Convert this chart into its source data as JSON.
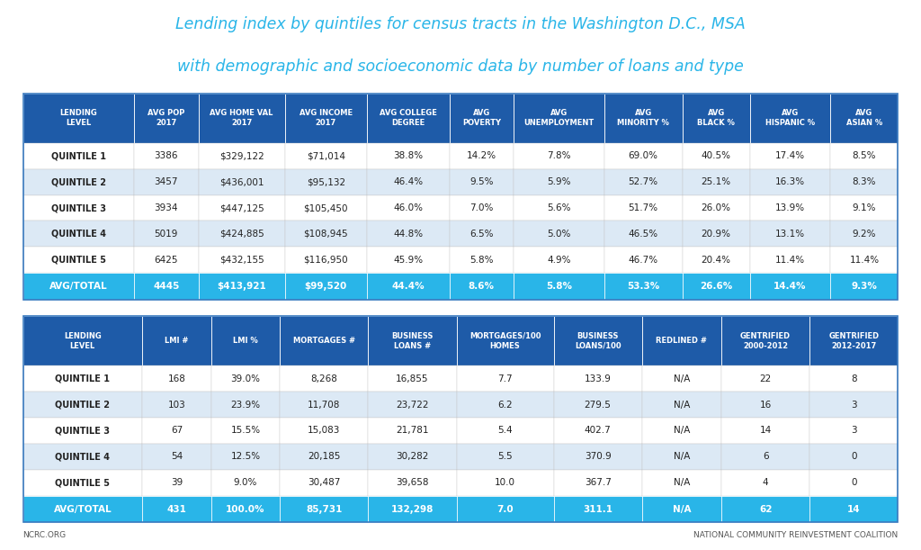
{
  "title_line1": "Lending index by quintiles for census tracts in the Washington D.C., MSA",
  "title_line2": "with demographic and socioeconomic data by number of loans and type",
  "title_color": "#29b5e8",
  "footer_left": "NCRC.ORG",
  "footer_right": "NATIONAL COMMUNITY REINVESTMENT COALITION",
  "header_bg": "#1e5ba8",
  "header_text_color": "#ffffff",
  "row_bg_odd": "#ffffff",
  "row_bg_even": "#dce9f5",
  "avg_row_bg": "#29b5e8",
  "avg_row_text_color": "#ffffff",
  "table1_headers": [
    "LENDING\nLEVEL",
    "AVG POP\n2017",
    "AVG HOME VAL\n2017",
    "AVG INCOME\n2017",
    "AVG COLLEGE\nDEGREE",
    "AVG\nPOVERTY",
    "AVG\nUNEMPLOYMENT",
    "AVG\nMINORITY %",
    "AVG\nBLACK %",
    "AVG\nHISPANIC %",
    "AVG\nASIAN %"
  ],
  "table1_rows": [
    [
      "QUINTILE 1",
      "3386",
      "$329,122",
      "$71,014",
      "38.8%",
      "14.2%",
      "7.8%",
      "69.0%",
      "40.5%",
      "17.4%",
      "8.5%"
    ],
    [
      "QUINTILE 2",
      "3457",
      "$436,001",
      "$95,132",
      "46.4%",
      "9.5%",
      "5.9%",
      "52.7%",
      "25.1%",
      "16.3%",
      "8.3%"
    ],
    [
      "QUINTILE 3",
      "3934",
      "$447,125",
      "$105,450",
      "46.0%",
      "7.0%",
      "5.6%",
      "51.7%",
      "26.0%",
      "13.9%",
      "9.1%"
    ],
    [
      "QUINTILE 4",
      "5019",
      "$424,885",
      "$108,945",
      "44.8%",
      "6.5%",
      "5.0%",
      "46.5%",
      "20.9%",
      "13.1%",
      "9.2%"
    ],
    [
      "QUINTILE 5",
      "6425",
      "$432,155",
      "$116,950",
      "45.9%",
      "5.8%",
      "4.9%",
      "46.7%",
      "20.4%",
      "11.4%",
      "11.4%"
    ]
  ],
  "table1_avg": [
    "AVG/TOTAL",
    "4445",
    "$413,921",
    "$99,520",
    "44.4%",
    "8.6%",
    "5.8%",
    "53.3%",
    "26.6%",
    "14.4%",
    "9.3%"
  ],
  "table1_col_widths": [
    1.35,
    0.78,
    1.05,
    1.0,
    1.0,
    0.78,
    1.1,
    0.95,
    0.82,
    0.98,
    0.82
  ],
  "table2_headers": [
    "LENDING\nLEVEL",
    "LMI #",
    "LMI %",
    "MORTGAGES #",
    "BUSINESS\nLOANS #",
    "MORTGAGES/100\nHOMES",
    "BUSINESS\nLOANS/100",
    "REDLINED #",
    "GENTRIFIED\n2000-2012",
    "GENTRIFIED\n2012-2017"
  ],
  "table2_rows": [
    [
      "QUINTILE 1",
      "168",
      "39.0%",
      "8,268",
      "16,855",
      "7.7",
      "133.9",
      "N/A",
      "22",
      "8"
    ],
    [
      "QUINTILE 2",
      "103",
      "23.9%",
      "11,708",
      "23,722",
      "6.2",
      "279.5",
      "N/A",
      "16",
      "3"
    ],
    [
      "QUINTILE 3",
      "67",
      "15.5%",
      "15,083",
      "21,781",
      "5.4",
      "402.7",
      "N/A",
      "14",
      "3"
    ],
    [
      "QUINTILE 4",
      "54",
      "12.5%",
      "20,185",
      "30,282",
      "5.5",
      "370.9",
      "N/A",
      "6",
      "0"
    ],
    [
      "QUINTILE 5",
      "39",
      "9.0%",
      "30,487",
      "39,658",
      "10.0",
      "367.7",
      "N/A",
      "4",
      "0"
    ]
  ],
  "table2_avg": [
    "AVG/TOTAL",
    "431",
    "100.0%",
    "85,731",
    "132,298",
    "7.0",
    "311.1",
    "N/A",
    "62",
    "14"
  ],
  "table2_col_widths": [
    1.35,
    0.78,
    0.78,
    1.0,
    1.0,
    1.1,
    1.0,
    0.9,
    1.0,
    1.0
  ]
}
